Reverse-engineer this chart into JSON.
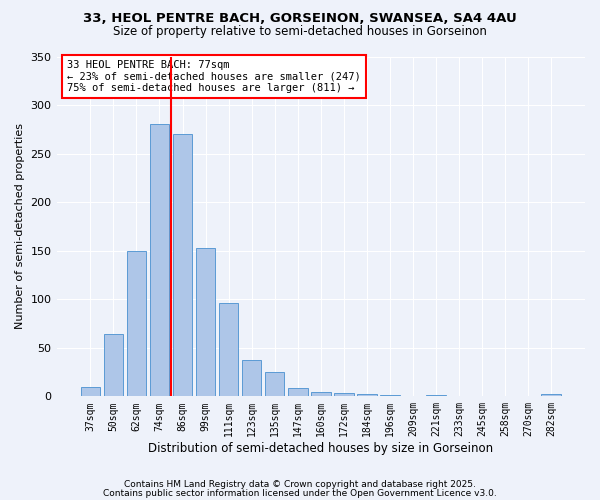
{
  "title1": "33, HEOL PENTRE BACH, GORSEINON, SWANSEA, SA4 4AU",
  "title2": "Size of property relative to semi-detached houses in Gorseinon",
  "xlabel": "Distribution of semi-detached houses by size in Gorseinon",
  "ylabel": "Number of semi-detached properties",
  "categories": [
    "37sqm",
    "50sqm",
    "62sqm",
    "74sqm",
    "86sqm",
    "99sqm",
    "111sqm",
    "123sqm",
    "135sqm",
    "147sqm",
    "160sqm",
    "172sqm",
    "184sqm",
    "196sqm",
    "209sqm",
    "221sqm",
    "233sqm",
    "245sqm",
    "258sqm",
    "270sqm",
    "282sqm"
  ],
  "values": [
    10,
    64,
    150,
    280,
    270,
    153,
    96,
    37,
    25,
    9,
    4,
    3,
    2,
    1,
    0,
    1,
    0,
    0,
    0,
    0,
    2
  ],
  "bar_color": "#aec6e8",
  "bar_edge_color": "#5b9bd5",
  "vline_x_idx": 3,
  "vline_color": "red",
  "annotation_line1": "33 HEOL PENTRE BACH: 77sqm",
  "annotation_line2": "← 23% of semi-detached houses are smaller (247)",
  "annotation_line3": "75% of semi-detached houses are larger (811) →",
  "annotation_box_color": "white",
  "annotation_box_edge": "red",
  "ylim": [
    0,
    350
  ],
  "yticks": [
    0,
    50,
    100,
    150,
    200,
    250,
    300,
    350
  ],
  "footer1": "Contains HM Land Registry data © Crown copyright and database right 2025.",
  "footer2": "Contains public sector information licensed under the Open Government Licence v3.0.",
  "bg_color": "#eef2fa",
  "plot_bg_color": "#eef2fa",
  "title1_fontsize": 9.5,
  "title2_fontsize": 8.5
}
